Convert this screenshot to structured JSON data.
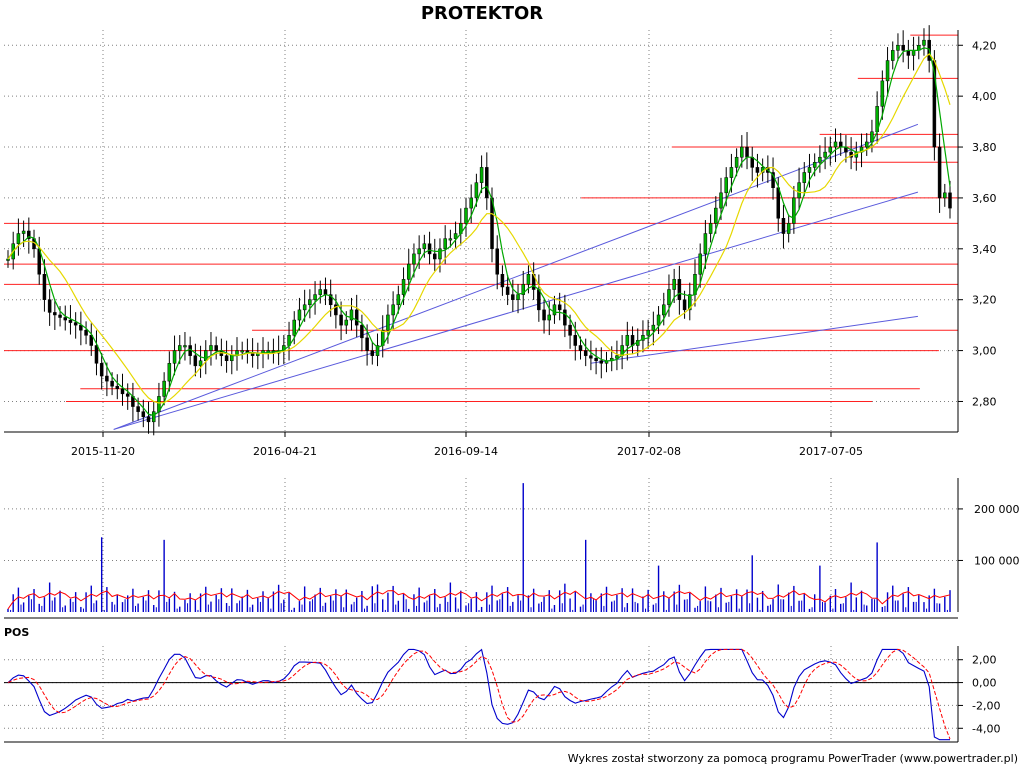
{
  "chart_data": {
    "type": "candlestick",
    "title": "PROTEKTOR",
    "footer": "Wykres został stworzony za pomocą programu PowerTrader (www.powertrader.pl)",
    "x_ticks": [
      "2015-11-20",
      "2016-04-21",
      "2016-09-14",
      "2017-02-08",
      "2017-07-05"
    ],
    "price_axis": {
      "ylim": [
        2.68,
        4.26
      ],
      "ticks": [
        "2,80",
        "3,00",
        "3,20",
        "3,40",
        "3,60",
        "3,80",
        "4,00",
        "4,20"
      ],
      "tick_values": [
        2.8,
        3.0,
        3.2,
        3.4,
        3.6,
        3.8,
        4.0,
        4.2
      ]
    },
    "price_close": [
      3.36,
      3.42,
      3.46,
      3.47,
      3.44,
      3.4,
      3.3,
      3.2,
      3.15,
      3.14,
      3.13,
      3.12,
      3.11,
      3.1,
      3.08,
      3.06,
      3.02,
      2.95,
      2.9,
      2.88,
      2.86,
      2.85,
      2.83,
      2.82,
      2.78,
      2.76,
      2.74,
      2.72,
      2.76,
      2.82,
      2.88,
      2.95,
      3.0,
      3.02,
      3.02,
      2.98,
      2.94,
      2.96,
      3.0,
      3.02,
      3.0,
      2.98,
      2.96,
      2.98,
      3.0,
      3.0,
      2.99,
      2.98,
      2.99,
      3.0,
      3.0,
      2.99,
      3.0,
      3.02,
      3.06,
      3.12,
      3.16,
      3.18,
      3.2,
      3.22,
      3.24,
      3.22,
      3.18,
      3.14,
      3.1,
      3.12,
      3.16,
      3.1,
      3.05,
      3.0,
      2.98,
      3.02,
      3.08,
      3.14,
      3.18,
      3.22,
      3.28,
      3.34,
      3.38,
      3.4,
      3.42,
      3.38,
      3.36,
      3.4,
      3.44,
      3.44,
      3.46,
      3.5,
      3.56,
      3.6,
      3.66,
      3.72,
      3.6,
      3.4,
      3.3,
      3.25,
      3.22,
      3.2,
      3.22,
      3.26,
      3.3,
      3.24,
      3.16,
      3.12,
      3.14,
      3.18,
      3.16,
      3.1,
      3.06,
      3.02,
      3.0,
      2.98,
      2.97,
      2.96,
      2.95,
      2.96,
      2.97,
      2.98,
      3.02,
      3.06,
      3.02,
      3.04,
      3.06,
      3.08,
      3.1,
      3.14,
      3.18,
      3.24,
      3.28,
      3.2,
      3.16,
      3.22,
      3.3,
      3.38,
      3.46,
      3.5,
      3.56,
      3.62,
      3.68,
      3.72,
      3.76,
      3.8,
      3.76,
      3.72,
      3.7,
      3.72,
      3.7,
      3.64,
      3.52,
      3.46,
      3.5,
      3.6,
      3.66,
      3.7,
      3.72,
      3.74,
      3.76,
      3.78,
      3.8,
      3.82,
      3.8,
      3.78,
      3.76,
      3.78,
      3.8,
      3.82,
      3.86,
      3.96,
      4.06,
      4.14,
      4.18,
      4.2,
      4.18,
      4.16,
      4.18,
      4.2,
      4.22,
      4.14,
      3.8,
      3.6,
      3.62,
      3.56
    ],
    "price_lines": {
      "horizontal_levels": [
        4.24,
        4.07,
        3.85,
        3.8,
        3.74,
        3.6,
        3.5,
        3.34,
        3.26,
        3.08,
        3.0,
        2.85,
        2.8
      ],
      "trend_lines": [
        {
          "from": [
            0.115,
            2.69
          ],
          "to": [
            0.937,
            3.86
          ]
        },
        {
          "from": [
            0.115,
            2.69
          ],
          "to": [
            0.937,
            3.6
          ]
        },
        {
          "from": [
            0.615,
            2.95
          ],
          "to": [
            0.937,
            3.13
          ]
        }
      ]
    },
    "volume_axis": {
      "ylim": [
        0,
        260000
      ],
      "ticks": [
        "100 000",
        "200 000"
      ],
      "tick_values": [
        100000,
        200000
      ]
    },
    "volume_spikes": [
      {
        "i": 18,
        "v": 145000
      },
      {
        "i": 30,
        "v": 140000
      },
      {
        "i": 70,
        "v": 50000
      },
      {
        "i": 99,
        "v": 250000
      },
      {
        "i": 111,
        "v": 140000
      },
      {
        "i": 125,
        "v": 90000
      },
      {
        "i": 143,
        "v": 110000
      },
      {
        "i": 156,
        "v": 90000
      },
      {
        "i": 167,
        "v": 135000
      }
    ],
    "pos_label": "POS",
    "pos_axis": {
      "ylim": [
        -5.2,
        3.2
      ],
      "ticks": [
        "2,00",
        "0,00",
        "-2,00",
        "-4,00"
      ],
      "tick_values": [
        2,
        0,
        -2,
        -4
      ]
    },
    "series_colors": {
      "ma_green": "#00a800",
      "ma_yellow": "#e6d800",
      "trend": "#5a5adc",
      "level": "#ff2020",
      "volume": "#0000cc",
      "vol_ma": "#ff0000",
      "pos": "#0000cc",
      "pos_signal": "#ff0000"
    }
  }
}
